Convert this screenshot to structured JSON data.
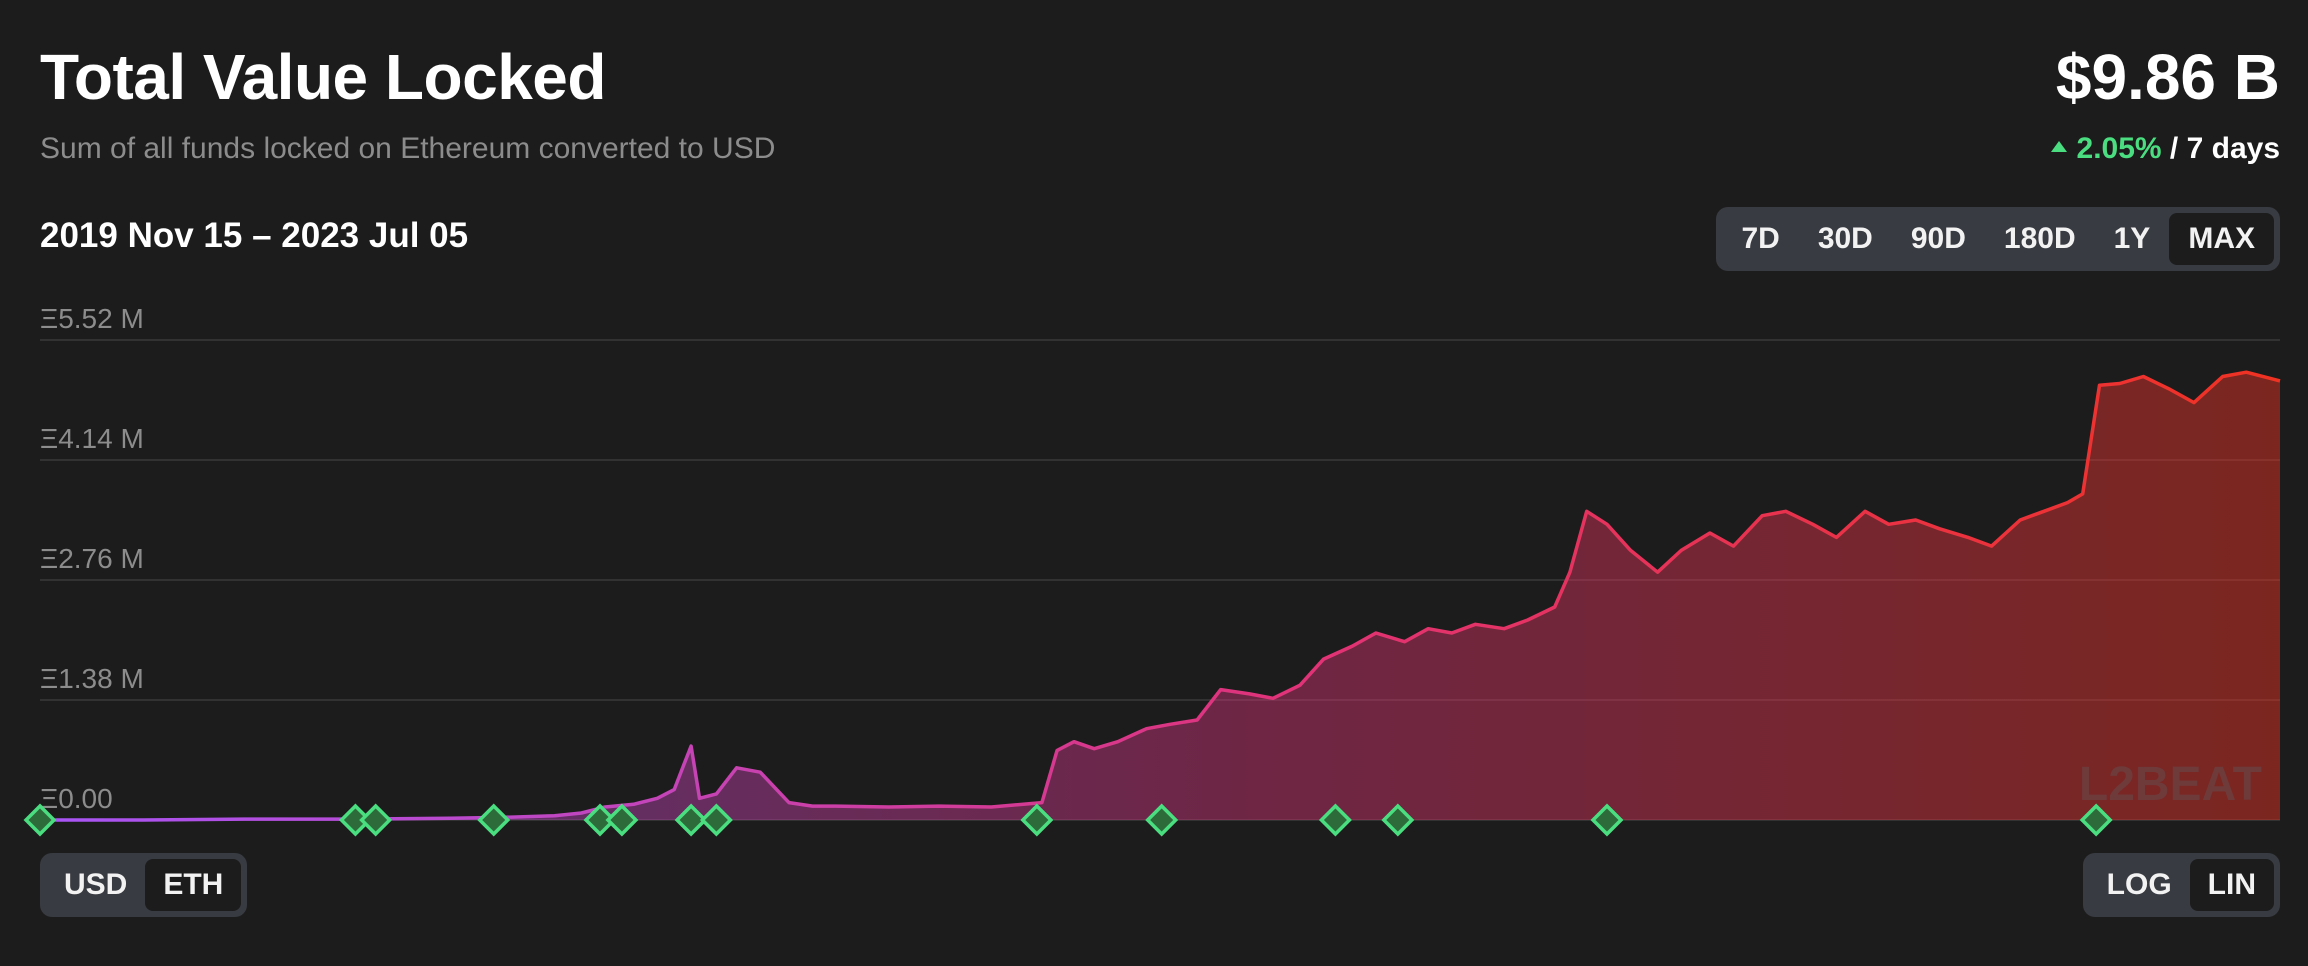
{
  "header": {
    "title": "Total Value Locked",
    "subtitle": "Sum of all funds locked on Ethereum converted to USD",
    "total": "$9.86 B",
    "change_value": "2.05%",
    "change_period": " / 7 days"
  },
  "date_range": "2019 Nov 15 – 2023 Jul 05",
  "range_options": [
    "7D",
    "30D",
    "90D",
    "180D",
    "1Y",
    "MAX"
  ],
  "range_selected": "MAX",
  "unit_options": [
    "USD",
    "ETH"
  ],
  "unit_selected": "ETH",
  "scale_options": [
    "LOG",
    "LIN"
  ],
  "scale_selected": "LIN",
  "watermark": "L2BEAT",
  "colors": {
    "background": "#1c1c1c",
    "line_start": "#a855f7",
    "line_mid": "#e0337a",
    "line_end": "#f03222",
    "milestone": "#4ade80",
    "grid": "#3a3a3a"
  },
  "chart_data": {
    "type": "area",
    "x_start": "2019-11-15",
    "x_end": "2023-07-05",
    "y_unit": "ETH",
    "y_ticks": [
      "Ξ5.52 M",
      "Ξ4.14 M",
      "Ξ2.76 M",
      "Ξ1.38 M",
      "Ξ0.00"
    ],
    "ylim": [
      0,
      5.52
    ],
    "grid": true,
    "series": [
      {
        "x": [
          "2019-11-15",
          "2020-01-15",
          "2020-03-15",
          "2020-05-15",
          "2020-07-15",
          "2020-08-15",
          "2020-09-15",
          "2020-10-01",
          "2020-10-15",
          "2020-11-01",
          "2020-11-15",
          "2020-11-25",
          "2020-12-01",
          "2020-12-05",
          "2020-12-10",
          "2020-12-20",
          "2021-01-01",
          "2021-01-15",
          "2021-02-01",
          "2021-02-15",
          "2021-03-01",
          "2021-04-01",
          "2021-05-01",
          "2021-06-01",
          "2021-07-01",
          "2021-07-10",
          "2021-07-20",
          "2021-08-01",
          "2021-08-15",
          "2021-09-01",
          "2021-09-15",
          "2021-10-01",
          "2021-10-15",
          "2021-11-01",
          "2021-11-15",
          "2021-12-01",
          "2021-12-15",
          "2022-01-01",
          "2022-01-15",
          "2022-02-01",
          "2022-02-15",
          "2022-03-01",
          "2022-03-15",
          "2022-04-01",
          "2022-04-15",
          "2022-05-01",
          "2022-05-10",
          "2022-05-20",
          "2022-06-01",
          "2022-06-15",
          "2022-07-01",
          "2022-07-15",
          "2022-08-01",
          "2022-08-15",
          "2022-09-01",
          "2022-09-15",
          "2022-10-01",
          "2022-10-15",
          "2022-11-01",
          "2022-11-15",
          "2022-12-01",
          "2022-12-15",
          "2023-01-01",
          "2023-01-15",
          "2023-02-01",
          "2023-02-15",
          "2023-03-01",
          "2023-03-10",
          "2023-03-20",
          "2023-04-01",
          "2023-04-15",
          "2023-05-01",
          "2023-05-15",
          "2023-06-01",
          "2023-06-15",
          "2023-07-05"
        ],
        "values": [
          0.0,
          0.0,
          0.01,
          0.01,
          0.02,
          0.03,
          0.05,
          0.08,
          0.15,
          0.18,
          0.25,
          0.35,
          0.65,
          0.85,
          0.25,
          0.3,
          0.6,
          0.55,
          0.2,
          0.16,
          0.16,
          0.15,
          0.16,
          0.15,
          0.2,
          0.8,
          0.9,
          0.82,
          0.9,
          1.05,
          1.1,
          1.15,
          1.5,
          1.45,
          1.4,
          1.55,
          1.85,
          2.0,
          2.15,
          2.05,
          2.2,
          2.15,
          2.25,
          2.2,
          2.3,
          2.45,
          2.85,
          3.55,
          3.4,
          3.1,
          2.85,
          3.1,
          3.3,
          3.15,
          3.5,
          3.55,
          3.4,
          3.25,
          3.55,
          3.4,
          3.45,
          3.35,
          3.25,
          3.15,
          3.45,
          3.55,
          3.65,
          3.75,
          5.0,
          5.02,
          5.1,
          4.95,
          4.8,
          5.1,
          5.15,
          5.05
        ]
      }
    ],
    "milestones": [
      "2019-11-15",
      "2020-05-20",
      "2020-06-01",
      "2020-08-10",
      "2020-10-12",
      "2020-10-25",
      "2020-12-05",
      "2020-12-20",
      "2021-06-28",
      "2021-09-10",
      "2021-12-22",
      "2022-01-28",
      "2022-06-01",
      "2023-03-18"
    ]
  }
}
